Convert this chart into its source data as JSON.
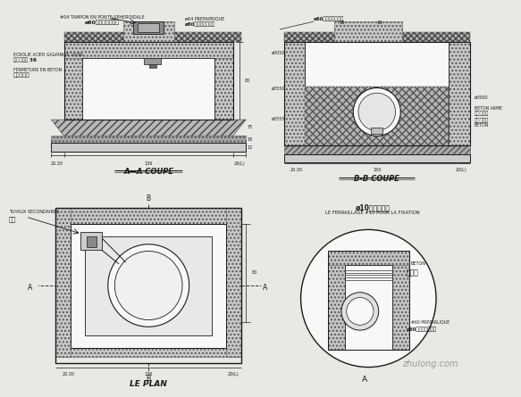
{
  "bg_color": "#e8e8e4",
  "paper_color": "#f2f2ee",
  "line_color": "#1a1a1a",
  "dim_color": "#1a1a1a",
  "hatch_dense_fc": "#c0c0c0",
  "hatch_light_fc": "#d8d8d8",
  "white_fc": "#f8f8f6",
  "labels": {
    "top_fr": "#04 TAMPON EN PONTE SPHEROIDALE",
    "top_cn": "ø60梯段井盖及支座",
    "top_right_fr": "ø64 PREPAPRIQUE",
    "top_right_cn": "ø60预制混凝土井筒",
    "left_fr1": "ECROLIE ACIER GALVANISE 10/36-",
    "left_cn1": "镇件水平析 36",
    "left_fr2": "FERMETURE EN BETON",
    "left_cn2": "混凝土盖板",
    "aa_label": "A―A COUPE",
    "bb_label": "B-B COUPE",
    "plan_label": "LE PLAN",
    "plan_fr": "TUYAUX SECONDAIRES",
    "plan_cn": "支管",
    "detail_cn": "ø10横筋平面图",
    "detail_fr": "LE FERRAILLAGE #10 POUR LA FIXATION",
    "beton_fr": "BETON",
    "beton_cn": "混凝土",
    "ba_fr": "BETON ARME",
    "ba_cn": "钉筋混凝土",
    "couche_cn": "混凝土外层",
    "beton2_fr": "BETON",
    "preparlique_fr": "#60 PREPARLIQUE",
    "preparlique_cn": "ø60预制混凝土井筒",
    "A_mark": "A",
    "B_mark": "B"
  },
  "watermark": "zhulong.com"
}
